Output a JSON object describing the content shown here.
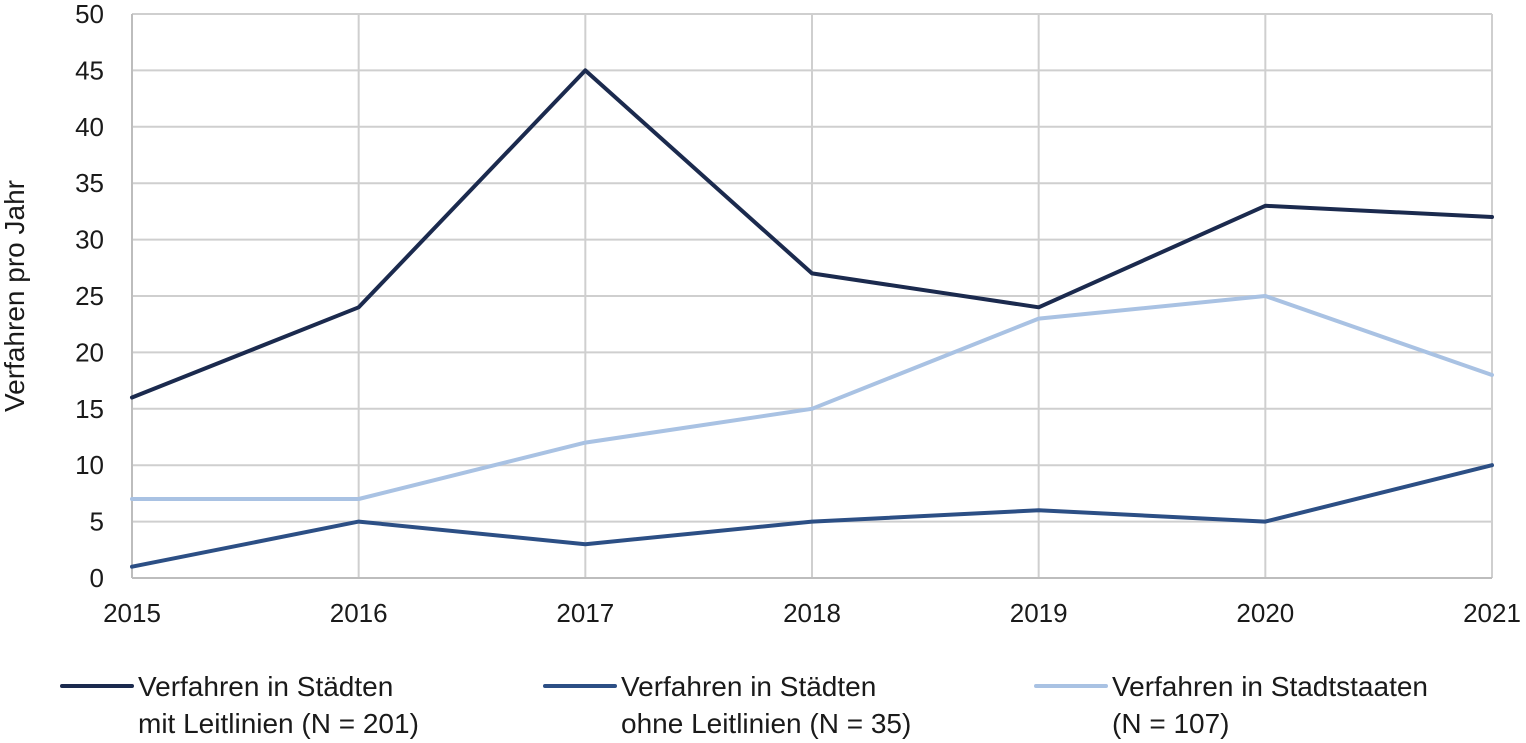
{
  "chart_data": {
    "type": "line",
    "title": "",
    "xlabel": "",
    "ylabel": "Verfahren pro Jahr",
    "x": [
      "2015",
      "2016",
      "2017",
      "2018",
      "2019",
      "2020",
      "2021"
    ],
    "ylim": [
      0,
      50
    ],
    "yticks": [
      "0",
      "5",
      "10",
      "15",
      "20",
      "25",
      "30",
      "35",
      "40",
      "45",
      "50"
    ],
    "grid": true,
    "legend_position": "bottom",
    "series": [
      {
        "name": "Verfahren in Städten mit Leitlinien (N = 201)",
        "name_lines": [
          "Verfahren in Städten",
          "mit Leitlinien (N = 201)"
        ],
        "color": "#1b2a4e",
        "values": [
          16,
          24,
          45,
          27,
          24,
          33,
          32
        ]
      },
      {
        "name": "Verfahren in Städten ohne Leitlinien (N = 35)",
        "name_lines": [
          "Verfahren in Städten",
          "ohne Leitlinien (N = 35)"
        ],
        "color": "#2c4f85",
        "values": [
          1,
          5,
          3,
          5,
          6,
          5,
          10
        ]
      },
      {
        "name": "Verfahren in Stadtstaaten (N = 107)",
        "name_lines": [
          "Verfahren in Stadtstaaten",
          "(N = 107)"
        ],
        "color": "#a9c2e3",
        "values": [
          7,
          7,
          12,
          15,
          23,
          25,
          18
        ]
      }
    ]
  }
}
